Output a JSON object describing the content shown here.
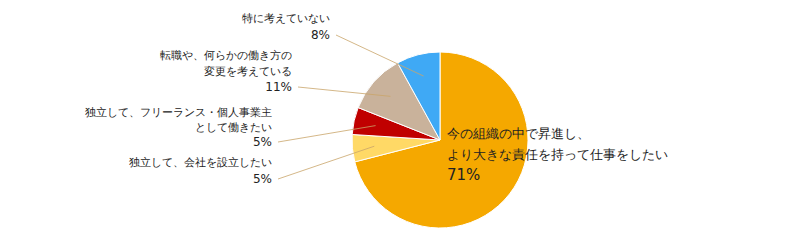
{
  "chart_data": {
    "type": "pie",
    "categories": [
      "今の組織の中で昇進し、\nより大きな責任を持って仕事をしたい",
      "独立して、会社を設立したい",
      "独立して、フリーランス・個人事業主\nとして働きたい",
      "転職や、何らかの働き方の\n変更を考えている",
      "特に考えていない"
    ],
    "values": [
      71,
      5,
      5,
      11,
      8
    ],
    "value_labels": [
      "71%",
      "5%",
      "5%",
      "11%",
      "8%"
    ],
    "colors": [
      "#F5A800",
      "#FFD966",
      "#C00000",
      "#C9B29B",
      "#3FA9F5"
    ],
    "data_labels": true
  }
}
